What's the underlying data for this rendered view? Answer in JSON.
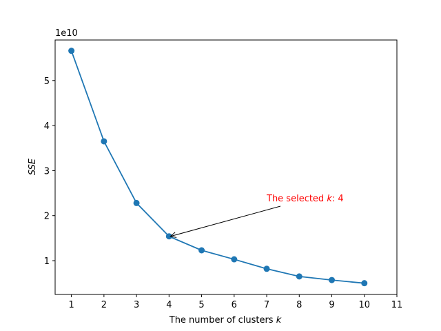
{
  "chart_data": {
    "type": "line",
    "x": [
      1,
      2,
      3,
      4,
      5,
      6,
      7,
      8,
      9,
      10
    ],
    "series": [
      {
        "values": [
          5.66,
          3.65,
          2.28,
          1.54,
          1.23,
          1.03,
          0.82,
          0.65,
          0.57,
          0.5
        ]
      }
    ],
    "xlabel_prefix": "The number of clusters ",
    "xlabel_var": "k",
    "ylabel": "SSE",
    "y_multiplier": "1e10",
    "xlim": [
      0.5,
      11
    ],
    "ylim": [
      0.25,
      5.9
    ],
    "xticks": [
      "1",
      "2",
      "3",
      "4",
      "5",
      "6",
      "7",
      "8",
      "9",
      "10",
      "11"
    ],
    "yticks": [
      "1",
      "2",
      "3",
      "4",
      "5"
    ],
    "grid": false,
    "line_color": "#1f77b4",
    "annotation": {
      "text_prefix": "The selected ",
      "text_var": "k",
      "text_suffix": ": 4",
      "color": "#ff0000",
      "target_x": 4,
      "target_y": 1.54
    }
  }
}
